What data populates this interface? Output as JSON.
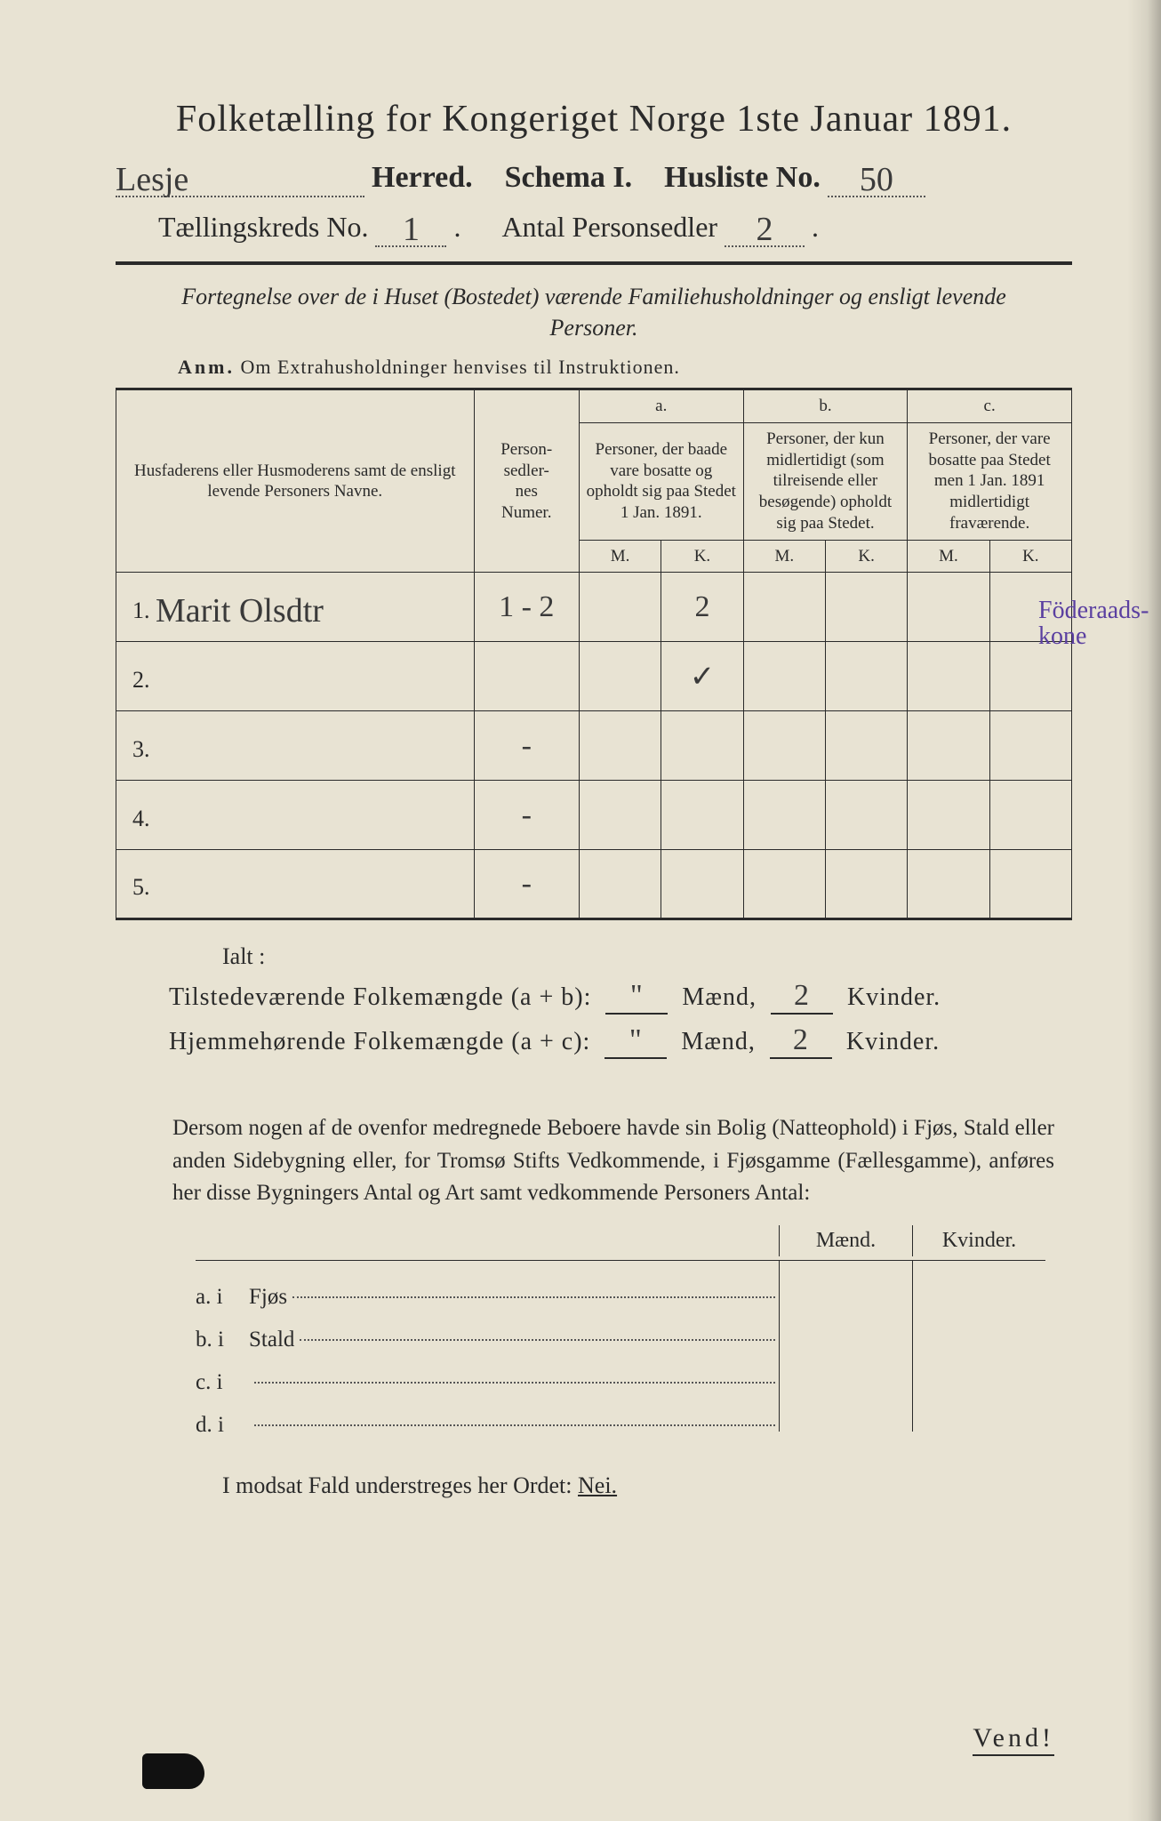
{
  "header": {
    "title": "Folketælling for Kongeriget Norge 1ste Januar 1891.",
    "herred_value": "Lesje",
    "herred_label": "Herred.",
    "schema_label": "Schema I.",
    "husliste_label": "Husliste No.",
    "husliste_value": "50",
    "kreds_label": "Tællingskreds No.",
    "kreds_value": "1",
    "antal_label": "Antal Personsedler",
    "antal_value": "2"
  },
  "subtitle": "Fortegnelse over de i Huset (Bostedet) værende Familiehusholdninger og ensligt levende Personer.",
  "anm": {
    "prefix": "Anm.",
    "text": "Om Extrahusholdninger henvises til Instruktionen."
  },
  "table": {
    "col_name": "Husfaderens eller Husmoderens samt de ensligt levende Personers Navne.",
    "col_num": "Person-\nsedler-\nnes\nNumer.",
    "group_a_letter": "a.",
    "group_a": "Personer, der baade vare bosatte og opholdt sig paa Stedet 1 Jan. 1891.",
    "group_b_letter": "b.",
    "group_b": "Personer, der kun midlertidigt (som tilreisende eller besøgende) opholdt sig paa Stedet.",
    "group_c_letter": "c.",
    "group_c": "Personer, der vare bosatte paa Stedet men 1 Jan. 1891 midlertidigt fraværende.",
    "mk_m": "M.",
    "mk_k": "K.",
    "rows": [
      {
        "n": "1.",
        "name": "Marit Olsdtr",
        "num": "1 - 2",
        "aM": "",
        "aK": "2",
        "bM": "",
        "bK": "",
        "cM": "",
        "cK": ""
      },
      {
        "n": "2.",
        "name": "",
        "num": "",
        "aM": "",
        "aK": "✓",
        "bM": "",
        "bK": "",
        "cM": "",
        "cK": ""
      },
      {
        "n": "3.",
        "name": "",
        "num": "-",
        "aM": "",
        "aK": "",
        "bM": "",
        "bK": "",
        "cM": "",
        "cK": ""
      },
      {
        "n": "4.",
        "name": "",
        "num": "-",
        "aM": "",
        "aK": "",
        "bM": "",
        "bK": "",
        "cM": "",
        "cK": ""
      },
      {
        "n": "5.",
        "name": "",
        "num": "-",
        "aM": "",
        "aK": "",
        "bM": "",
        "bK": "",
        "cM": "",
        "cK": ""
      }
    ]
  },
  "margin_note": "Föderaads-\nkone",
  "totals": {
    "ialt": "Ialt :",
    "line1_label": "Tilstedeværende Folkemængde (a + b):",
    "line2_label": "Hjemmehørende Folkemængde (a + c):",
    "maend": "Mænd,",
    "kvinder": "Kvinder.",
    "l1_m": "\"",
    "l1_k": "2",
    "l2_m": "\"",
    "l2_k": "2"
  },
  "paragraph": "Dersom nogen af de ovenfor medregnede Beboere havde sin Bolig (Natteophold) i Fjøs, Stald eller anden Sidebygning eller, for Tromsø Stifts Vedkommende, i Fjøsgamme (Fællesgamme), anføres her disse Bygningers Antal og Art samt vedkommende Personers Antal:",
  "side": {
    "head_m": "Mænd.",
    "head_k": "Kvinder.",
    "rows": [
      {
        "label": "a.  i",
        "text": "Fjøs"
      },
      {
        "label": "b.  i",
        "text": "Stald"
      },
      {
        "label": "c.  i",
        "text": ""
      },
      {
        "label": "d.  i",
        "text": ""
      }
    ]
  },
  "nei_line": {
    "prefix": "I modsat Fald understreges her Ordet:",
    "word": "Nei."
  },
  "vend": "Vend!",
  "colors": {
    "paper": "#e8e3d3",
    "ink": "#2a2a2a",
    "hand_ink": "#3a3a3a",
    "note_ink": "#5a3fa0"
  }
}
